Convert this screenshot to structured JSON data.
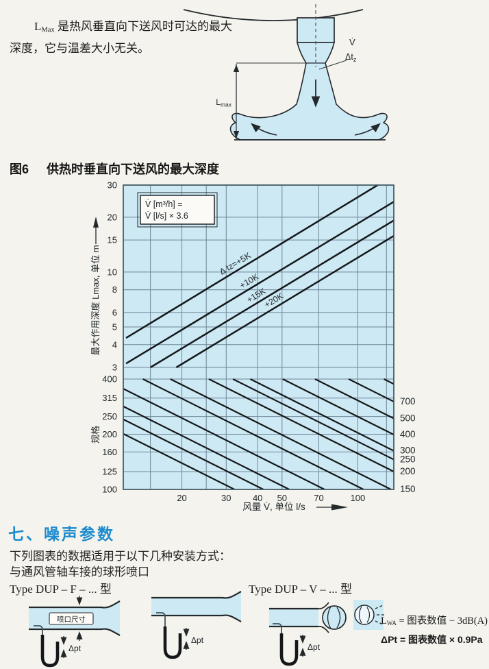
{
  "intro": {
    "l": "L",
    "l_sub": "Max",
    "rest1": " 是热风垂直向下送风时可达的最大",
    "line2": "深度，它与温差大小无关。"
  },
  "figure6": {
    "caption_no": "图6",
    "caption": "供热时垂直向下送风的最大深度",
    "jet_labels": {
      "flow": "V̇",
      "dt": "Δt",
      "dt_sub": "z",
      "lmax": "L",
      "lmax_sub": "max"
    }
  },
  "chart_data": {
    "type": "line",
    "x_axis": {
      "label": "风量 V̇, 单位 l/s",
      "scale": "log",
      "min": 11.7,
      "max": 139,
      "tick_labels": [
        20,
        30,
        40,
        50,
        70,
        100
      ],
      "gridlines": [
        15,
        20,
        25,
        30,
        40,
        50,
        70,
        100,
        130
      ]
    },
    "y_axis_upper": {
      "label": "最大作用深度 Lmax, 单位 m",
      "scale": "log",
      "min": 3,
      "max": 30,
      "ticks": [
        3,
        4,
        5,
        6,
        8,
        10,
        15,
        20,
        30
      ]
    },
    "y_axis_lower": {
      "label": "规格",
      "scale": "log",
      "min": 100,
      "max": 400,
      "ticks": [
        100,
        125,
        160,
        200,
        250,
        315,
        400
      ]
    },
    "note_box": [
      "V̇ [m³/h] =",
      "V̇ [l/s] × 3.6"
    ],
    "series_upper": [
      {
        "name": "Δ tz=+5K",
        "points": [
          [
            12,
            4.35
          ],
          [
            120,
            30
          ]
        ],
        "label_v": 33
      },
      {
        "name": "+10K",
        "points": [
          [
            12,
            3.15
          ],
          [
            139,
            24.3
          ]
        ],
        "label_v": 37.5
      },
      {
        "name": "+15K",
        "points": [
          [
            15,
            3.0
          ],
          [
            139,
            19.2
          ]
        ],
        "label_v": 40
      },
      {
        "name": "+20K",
        "points": [
          [
            19,
            3.0
          ],
          [
            139,
            15.8
          ]
        ],
        "label_v": 47
      }
    ],
    "diagonals": {
      "slope_dec_per_dec": -0.687,
      "lines": [
        {
          "v_at_size400": 4.3
        },
        {
          "v_at_size400": 5.6
        },
        {
          "v_at_size400": 7.1
        },
        {
          "v_at_size400": 9.8
        },
        {
          "v_at_size400": 14
        },
        {
          "v_at_size400": 18,
          "label": "150"
        },
        {
          "v_at_size400": 25.6,
          "label": "200"
        },
        {
          "v_at_size400": 31.9,
          "label": "250"
        },
        {
          "v_at_size400": 37.4,
          "label": "300"
        },
        {
          "v_at_size400": 50.3,
          "label": "400"
        },
        {
          "v_at_size400": 67.6,
          "label": "500"
        },
        {
          "v_at_size400": 92,
          "label": "700"
        },
        {
          "v_at_size400": 127
        }
      ]
    }
  },
  "section": {
    "title": "七、噪声参数",
    "line1": "下列图表的数据适用于以下几种安装方式：",
    "line2": "与通风管轴车接的球形喷口",
    "type_f": "Type DUP – F – ... 型",
    "type_v": "Type DUP – V – ... 型"
  },
  "diagrams": {
    "nozzle_dim": "喷口尺寸",
    "dpt": "Δpt"
  },
  "formulas": {
    "lwa_base": "L",
    "lwa_sub": "WA",
    "lwa_rest": " = 图表数值 − 3dB(A)",
    "dpt": "ΔPt = 图表数值 × 0.9Pa"
  },
  "colors": {
    "panel_blue": "#cde9f4",
    "grid": "#6d8694",
    "line": "#15181b",
    "heading_blue": "#1d8bcd"
  }
}
